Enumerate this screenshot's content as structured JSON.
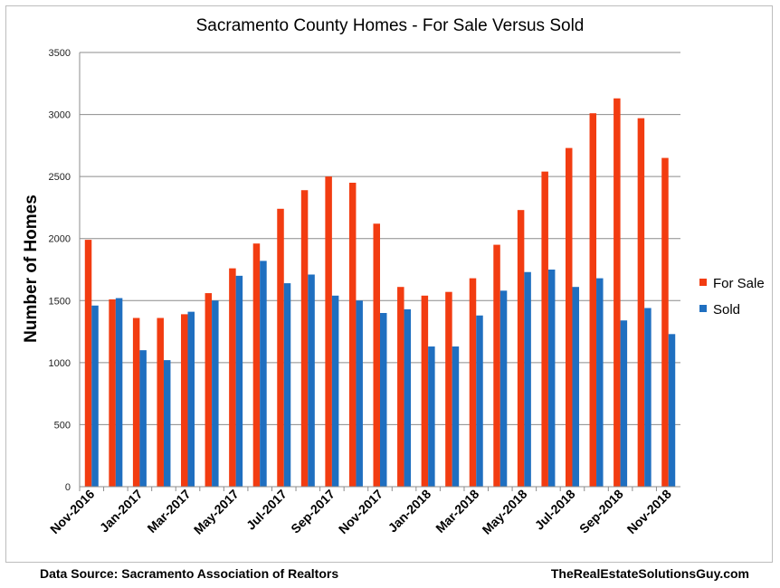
{
  "footer": {
    "source": "Data Source:  Sacramento Association of Realtors",
    "site": "TheRealEstateSolutionsGuy.com"
  },
  "colors": {
    "for_sale": "#f23c11",
    "sold": "#1f6fc0",
    "grid": "#8c8c8c"
  },
  "chart_data": {
    "type": "bar",
    "title": "Sacramento County Homes - For Sale Versus Sold",
    "xlabel": "",
    "ylabel": "Number of Homes",
    "ylim": [
      0,
      3500
    ],
    "yticks": [
      0,
      500,
      1000,
      1500,
      2000,
      2500,
      3000,
      3500
    ],
    "grid": true,
    "legend_position": "right",
    "categories": [
      "Nov-2016",
      "Dec-2016",
      "Jan-2017",
      "Feb-2017",
      "Mar-2017",
      "Apr-2017",
      "May-2017",
      "Jun-2017",
      "Jul-2017",
      "Aug-2017",
      "Sep-2017",
      "Oct-2017",
      "Nov-2017",
      "Dec-2017",
      "Jan-2018",
      "Feb-2018",
      "Mar-2018",
      "Apr-2018",
      "May-2018",
      "Jun-2018",
      "Jul-2018",
      "Aug-2018",
      "Sep-2018",
      "Oct-2018",
      "Nov-2018"
    ],
    "tick_labels": [
      "Nov-2016",
      "",
      "Jan-2017",
      "",
      "Mar-2017",
      "",
      "May-2017",
      "",
      "Jul-2017",
      "",
      "Sep-2017",
      "",
      "Nov-2017",
      "",
      "Jan-2018",
      "",
      "Mar-2018",
      "",
      "May-2018",
      "",
      "Jul-2018",
      "",
      "Sep-2018",
      "",
      "Nov-2018"
    ],
    "series": [
      {
        "name": "For Sale",
        "color": "#f23c11",
        "values": [
          1990,
          1510,
          1360,
          1360,
          1390,
          1560,
          1760,
          1960,
          2240,
          2390,
          2500,
          2450,
          2120,
          1610,
          1540,
          1570,
          1680,
          1950,
          2230,
          2540,
          2730,
          3010,
          3130,
          2970,
          2650
        ]
      },
      {
        "name": "Sold",
        "color": "#1f6fc0",
        "values": [
          1460,
          1520,
          1100,
          1020,
          1410,
          1500,
          1700,
          1820,
          1640,
          1710,
          1540,
          1500,
          1400,
          1430,
          1130,
          1130,
          1380,
          1580,
          1730,
          1750,
          1610,
          1680,
          1340,
          1440,
          1230
        ]
      }
    ]
  }
}
